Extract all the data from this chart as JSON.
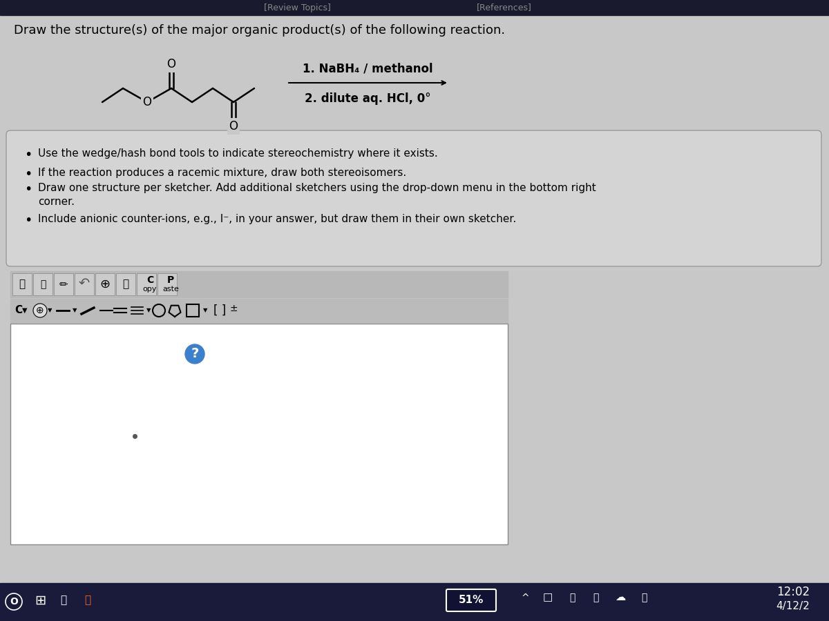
{
  "title": "Draw the structure(s) of the major organic product(s) of the following reaction.",
  "reagents_line1": "1. NaBH₄ / methanol",
  "reagents_line2": "2. dilute aq. HCl, 0°",
  "bullet_points": [
    "Use the wedge/hash bond tools to indicate stereochemistry where it exists.",
    "If the reaction produces a racemic mixture, draw both stereoisomers.",
    "Draw one structure per sketcher. Add additional sketchers using the drop-down menu in the bottom right corner.",
    "Include anionic counter-ions, e.g., I⁻, in your answer, but draw them in their own sketcher."
  ],
  "bg_color": "#c8c8c8",
  "panel_color": "#d4d4d4",
  "sketcher_bg": "#ffffff",
  "taskbar_color": "#1a1a2e",
  "bottom_bar_color": "#1a1a3a",
  "time_text": "12:02",
  "date_text": "4/12/2",
  "battery_pct": "51%"
}
